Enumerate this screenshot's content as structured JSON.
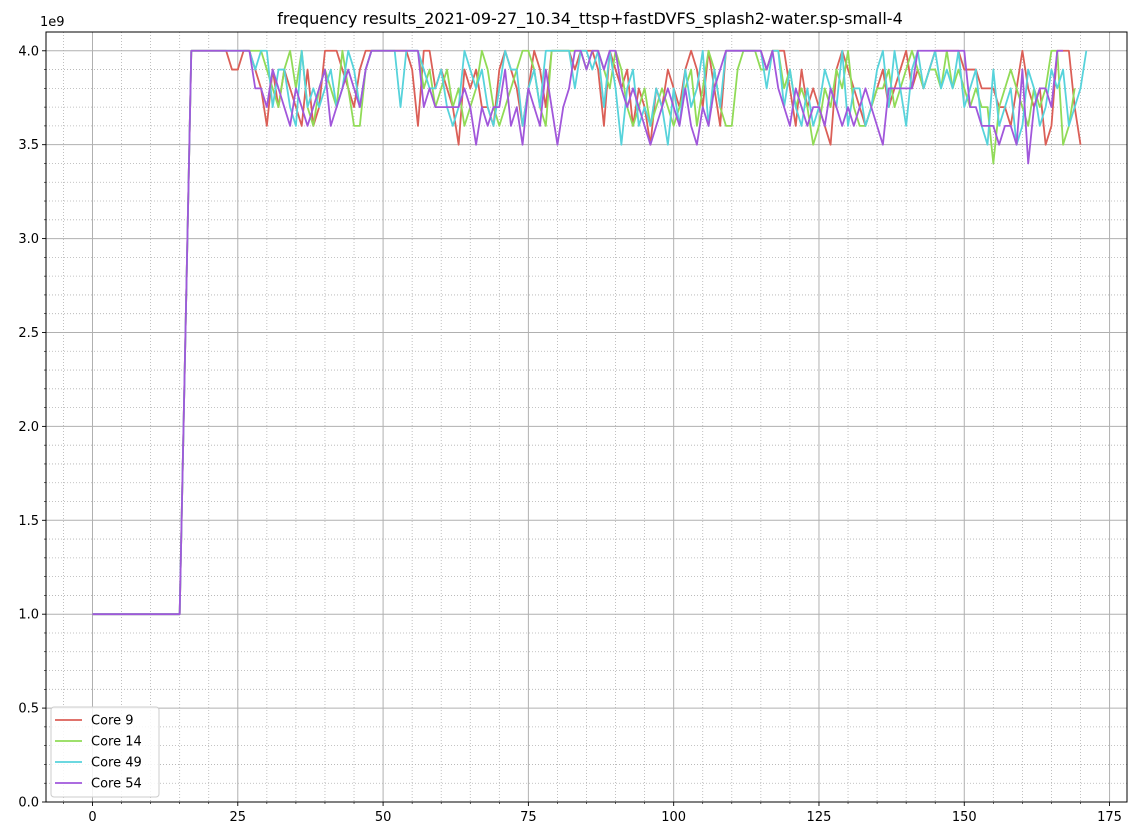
{
  "chart_data": {
    "type": "line",
    "title": "frequency results_2021-09-27_10.34_ttsp+fastDVFS_splash2-water.sp-small-4",
    "xlabel": "",
    "ylabel": "",
    "y_offset_label": "1e9",
    "xlim": [
      -8,
      178
    ],
    "ylim": [
      0,
      4.1
    ],
    "x_ticks": [
      0,
      25,
      50,
      75,
      100,
      125,
      150,
      175
    ],
    "x_tick_labels": [
      "0",
      "25",
      "50",
      "75",
      "100",
      "125",
      "150",
      "175"
    ],
    "y_ticks": [
      0,
      0.5,
      1.0,
      1.5,
      2.0,
      2.5,
      3.0,
      3.5,
      4.0
    ],
    "y_tick_labels": [
      "0.0",
      "0.5",
      "1.0",
      "1.5",
      "2.0",
      "2.5",
      "3.0",
      "3.5",
      "4.0"
    ],
    "grid": true,
    "minor_grid": true,
    "legend_position": "lower-left",
    "series": [
      {
        "name": "Core 9",
        "color": "#db5f57",
        "x_start": 0,
        "values": [
          1.0,
          1.0,
          1.0,
          1.0,
          1.0,
          1.0,
          1.0,
          1.0,
          1.0,
          1.0,
          1.0,
          1.0,
          1.0,
          1.0,
          1.0,
          1.0,
          2.5,
          4.0,
          4.0,
          4.0,
          4.0,
          4.0,
          4.0,
          4.0,
          3.9,
          3.9,
          4.0,
          4.0,
          3.9,
          3.8,
          3.6,
          3.9,
          3.7,
          3.9,
          3.8,
          3.7,
          3.6,
          3.9,
          3.6,
          3.7,
          4.0,
          4.0,
          4.0,
          3.9,
          3.8,
          3.7,
          3.9,
          4.0,
          4.0,
          4.0,
          4.0,
          4.0,
          4.0,
          4.0,
          4.0,
          3.9,
          3.6,
          4.0,
          4.0,
          3.8,
          3.9,
          3.8,
          3.7,
          3.5,
          3.9,
          3.8,
          3.9,
          3.7,
          3.7,
          3.6,
          3.9,
          4.0,
          3.9,
          3.8,
          3.6,
          3.8,
          4.0,
          3.9,
          3.7,
          4.0,
          4.0,
          4.0,
          4.0,
          3.9,
          4.0,
          4.0,
          4.0,
          3.9,
          3.6,
          4.0,
          3.9,
          3.8,
          3.9,
          3.6,
          3.8,
          3.7,
          3.5,
          3.8,
          3.7,
          3.9,
          3.8,
          3.7,
          3.9,
          4.0,
          3.9,
          3.7,
          4.0,
          3.8,
          3.6,
          4.0,
          4.0,
          4.0,
          4.0,
          4.0,
          4.0,
          4.0,
          3.9,
          4.0,
          4.0,
          4.0,
          3.8,
          3.6,
          3.9,
          3.7,
          3.8,
          3.7,
          3.6,
          3.5,
          3.9,
          4.0,
          3.9,
          3.8,
          3.7,
          3.6,
          3.7,
          3.8,
          3.9,
          3.7,
          3.8,
          3.9,
          4.0,
          3.8,
          3.9,
          3.8,
          3.9,
          4.0,
          4.0,
          4.0,
          4.0,
          4.0,
          3.9,
          3.9,
          3.9,
          3.8,
          3.8,
          3.8,
          3.7,
          3.7,
          3.6,
          3.8,
          4.0,
          3.8,
          3.7,
          3.8,
          3.5,
          3.6,
          4.0,
          4.0,
          4.0,
          3.7,
          3.5
        ]
      },
      {
        "name": "Core 14",
        "color": "#91db57",
        "x_start": 0,
        "values": [
          1.0,
          1.0,
          1.0,
          1.0,
          1.0,
          1.0,
          1.0,
          1.0,
          1.0,
          1.0,
          1.0,
          1.0,
          1.0,
          1.0,
          1.0,
          1.0,
          2.5,
          4.0,
          4.0,
          4.0,
          4.0,
          4.0,
          4.0,
          4.0,
          4.0,
          4.0,
          4.0,
          4.0,
          4.0,
          4.0,
          3.9,
          3.8,
          3.7,
          3.9,
          4.0,
          3.8,
          4.0,
          3.7,
          3.6,
          3.8,
          3.9,
          3.8,
          3.7,
          4.0,
          3.8,
          3.6,
          3.6,
          3.9,
          4.0,
          4.0,
          4.0,
          4.0,
          4.0,
          4.0,
          4.0,
          4.0,
          4.0,
          3.8,
          3.9,
          3.7,
          3.8,
          3.9,
          3.7,
          3.8,
          3.6,
          3.7,
          3.8,
          4.0,
          3.9,
          3.7,
          3.6,
          3.7,
          3.8,
          3.9,
          4.0,
          4.0,
          3.9,
          3.7,
          3.6,
          4.0,
          4.0,
          4.0,
          4.0,
          4.0,
          4.0,
          3.9,
          4.0,
          4.0,
          3.9,
          3.8,
          4.0,
          3.9,
          3.7,
          3.6,
          3.7,
          3.8,
          3.6,
          3.7,
          3.8,
          3.7,
          3.6,
          3.7,
          3.8,
          3.9,
          3.6,
          3.8,
          4.0,
          3.9,
          3.7,
          3.6,
          3.6,
          3.9,
          4.0,
          4.0,
          4.0,
          3.9,
          3.9,
          4.0,
          4.0,
          3.8,
          3.9,
          3.7,
          3.8,
          3.7,
          3.5,
          3.6,
          3.8,
          3.7,
          3.9,
          3.8,
          4.0,
          3.7,
          3.6,
          3.6,
          3.7,
          3.8,
          3.8,
          3.9,
          3.7,
          3.8,
          3.9,
          4.0,
          3.9,
          3.8,
          3.9,
          3.9,
          3.8,
          4.0,
          3.8,
          3.9,
          3.8,
          3.7,
          3.8,
          3.7,
          3.7,
          3.4,
          3.7,
          3.8,
          3.9,
          3.8,
          3.7,
          3.6,
          3.8,
          3.7,
          3.8,
          4.0,
          4.0,
          3.5,
          3.6,
          3.8
        ]
      },
      {
        "name": "Core 49",
        "color": "#57d3db",
        "x_start": 0,
        "values": [
          1.0,
          1.0,
          1.0,
          1.0,
          1.0,
          1.0,
          1.0,
          1.0,
          1.0,
          1.0,
          1.0,
          1.0,
          1.0,
          1.0,
          1.0,
          1.0,
          2.5,
          4.0,
          4.0,
          4.0,
          4.0,
          4.0,
          4.0,
          4.0,
          4.0,
          4.0,
          4.0,
          4.0,
          3.9,
          4.0,
          4.0,
          3.7,
          3.9,
          3.9,
          3.7,
          3.6,
          4.0,
          3.7,
          3.8,
          3.7,
          3.8,
          3.9,
          3.7,
          3.8,
          4.0,
          3.9,
          3.7,
          3.9,
          4.0,
          4.0,
          4.0,
          4.0,
          4.0,
          3.7,
          4.0,
          4.0,
          4.0,
          3.9,
          3.8,
          3.8,
          3.9,
          3.7,
          3.6,
          3.7,
          4.0,
          3.9,
          3.8,
          3.9,
          3.7,
          3.6,
          3.8,
          4.0,
          3.9,
          3.9,
          3.6,
          3.8,
          3.9,
          3.7,
          4.0,
          4.0,
          4.0,
          4.0,
          4.0,
          3.8,
          4.0,
          4.0,
          3.9,
          4.0,
          3.7,
          4.0,
          3.8,
          3.5,
          3.8,
          3.9,
          3.6,
          3.7,
          3.6,
          3.8,
          3.7,
          3.5,
          3.8,
          3.6,
          3.9,
          3.7,
          3.8,
          4.0,
          3.6,
          3.9,
          3.7,
          4.0,
          4.0,
          4.0,
          4.0,
          4.0,
          4.0,
          4.0,
          3.8,
          4.0,
          4.0,
          3.7,
          3.9,
          3.7,
          3.6,
          3.8,
          3.6,
          3.7,
          3.9,
          3.8,
          3.7,
          4.0,
          3.6,
          3.8,
          3.8,
          3.6,
          3.7,
          3.9,
          4.0,
          3.7,
          4.0,
          3.8,
          3.6,
          3.9,
          4.0,
          3.8,
          3.9,
          4.0,
          3.8,
          3.9,
          3.8,
          4.0,
          3.7,
          3.8,
          3.9,
          3.6,
          3.5,
          3.9,
          3.6,
          3.7,
          3.8,
          3.5,
          3.6,
          3.9,
          3.8,
          3.6,
          3.7,
          3.9,
          3.8,
          3.9,
          3.6,
          3.7,
          3.8,
          4.0
        ]
      },
      {
        "name": "Core 54",
        "color": "#a157db",
        "x_start": 0,
        "values": [
          1.0,
          1.0,
          1.0,
          1.0,
          1.0,
          1.0,
          1.0,
          1.0,
          1.0,
          1.0,
          1.0,
          1.0,
          1.0,
          1.0,
          1.0,
          1.0,
          2.5,
          4.0,
          4.0,
          4.0,
          4.0,
          4.0,
          4.0,
          4.0,
          4.0,
          4.0,
          4.0,
          4.0,
          3.8,
          3.8,
          3.7,
          3.9,
          3.8,
          3.7,
          3.6,
          3.8,
          3.7,
          3.6,
          3.7,
          3.8,
          3.9,
          3.6,
          3.7,
          3.8,
          3.9,
          3.8,
          3.7,
          3.9,
          4.0,
          4.0,
          4.0,
          4.0,
          4.0,
          4.0,
          4.0,
          4.0,
          4.0,
          3.7,
          3.8,
          3.7,
          3.7,
          3.7,
          3.7,
          3.7,
          3.8,
          3.7,
          3.5,
          3.7,
          3.6,
          3.7,
          3.7,
          3.9,
          3.6,
          3.7,
          3.5,
          3.8,
          3.7,
          3.6,
          3.9,
          3.7,
          3.5,
          3.7,
          3.8,
          4.0,
          4.0,
          3.9,
          4.0,
          4.0,
          3.9,
          4.0,
          4.0,
          3.8,
          3.7,
          3.8,
          3.7,
          3.6,
          3.5,
          3.6,
          3.7,
          3.8,
          3.7,
          3.6,
          3.8,
          3.6,
          3.5,
          3.7,
          3.6,
          3.8,
          3.9,
          4.0,
          4.0,
          4.0,
          4.0,
          4.0,
          4.0,
          4.0,
          3.9,
          4.0,
          3.8,
          3.7,
          3.6,
          3.8,
          3.7,
          3.6,
          3.7,
          3.7,
          3.6,
          3.8,
          3.7,
          3.6,
          3.7,
          3.6,
          3.7,
          3.8,
          3.7,
          3.6,
          3.5,
          3.8,
          3.8,
          3.8,
          3.8,
          3.8,
          4.0,
          4.0,
          4.0,
          4.0,
          4.0,
          4.0,
          4.0,
          4.0,
          4.0,
          3.7,
          3.7,
          3.6,
          3.6,
          3.6,
          3.5,
          3.6,
          3.6,
          3.5,
          3.9,
          3.4,
          3.7,
          3.8,
          3.8,
          3.7,
          4.0,
          4.0
        ]
      }
    ]
  }
}
